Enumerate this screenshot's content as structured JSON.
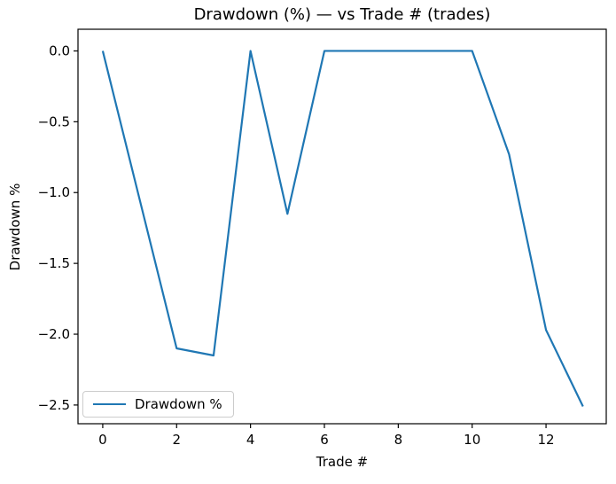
{
  "chart_data": {
    "type": "line",
    "title": "Drawdown (%) — vs Trade # (trades)",
    "xlabel": "Trade #",
    "ylabel": "Drawdown %",
    "x": [
      0,
      1,
      2,
      3,
      4,
      5,
      6,
      7,
      8,
      9,
      10,
      11,
      12,
      13
    ],
    "series": [
      {
        "name": "Drawdown %",
        "color": "#1f77b4",
        "values": [
          0.0,
          -1.05,
          -2.1,
          -2.15,
          0.0,
          -1.15,
          0.0,
          0.0,
          0.0,
          0.0,
          0.0,
          -0.73,
          -1.97,
          -2.51
        ]
      }
    ],
    "xticks": [
      0,
      2,
      4,
      6,
      8,
      10,
      12
    ],
    "xtick_labels": [
      "0",
      "2",
      "4",
      "6",
      "8",
      "10",
      "12"
    ],
    "yticks": [
      0.0,
      -0.5,
      -1.0,
      -1.5,
      -2.0,
      -2.5
    ],
    "ytick_labels": [
      "0.0",
      "−0.5",
      "−1.0",
      "−1.5",
      "−2.0",
      "−2.5"
    ],
    "xlim": [
      -0.67,
      13.63
    ],
    "ylim": [
      -2.632,
      0.153
    ],
    "grid": false,
    "legend": {
      "position": "lower-left",
      "entries": [
        "Drawdown %"
      ]
    },
    "colors": {
      "line": "#1f77b4",
      "spine": "#000000",
      "legend_border": "#cccccc"
    }
  }
}
